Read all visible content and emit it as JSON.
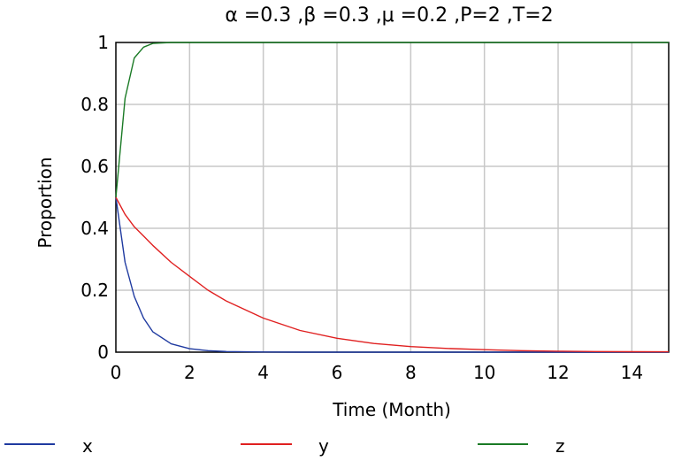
{
  "chart_data": {
    "type": "line",
    "title": "α =0.3 ,β =0.3 ,μ =0.2 ,P=2 ,T=2",
    "xlabel": "Time (Month)",
    "ylabel": "Proportion",
    "xlim": [
      0,
      15
    ],
    "ylim": [
      0,
      1
    ],
    "xticks": [
      "0",
      "2",
      "4",
      "6",
      "8",
      "10",
      "12",
      "14"
    ],
    "yticks": [
      "0",
      "0.2",
      "0.4",
      "0.6",
      "0.8",
      "1"
    ],
    "grid": true,
    "legend_position": "bottom",
    "x": [
      0,
      0.25,
      0.5,
      0.75,
      1,
      1.5,
      2,
      2.5,
      3,
      4,
      5,
      6,
      7,
      8,
      9,
      10,
      11,
      12,
      13,
      14,
      15
    ],
    "series": [
      {
        "name": "x",
        "color": "#1f3aa0",
        "values": [
          0.5,
          0.29,
          0.18,
          0.11,
          0.066,
          0.027,
          0.011,
          0.005,
          0.002,
          0.0005,
          0.0001,
          0,
          0,
          0,
          0,
          0,
          0,
          0,
          0,
          0,
          0
        ]
      },
      {
        "name": "y",
        "color": "#e02020",
        "values": [
          0.5,
          0.445,
          0.405,
          0.375,
          0.345,
          0.29,
          0.245,
          0.2,
          0.165,
          0.11,
          0.07,
          0.045,
          0.028,
          0.018,
          0.012,
          0.008,
          0.005,
          0.003,
          0.002,
          0.0015,
          0.001
        ]
      },
      {
        "name": "z",
        "color": "#1a7a25",
        "values": [
          0.5,
          0.82,
          0.95,
          0.985,
          0.997,
          1,
          1,
          1,
          1,
          1,
          1,
          1,
          1,
          1,
          1,
          1,
          1,
          1,
          1,
          1,
          1
        ]
      }
    ]
  }
}
